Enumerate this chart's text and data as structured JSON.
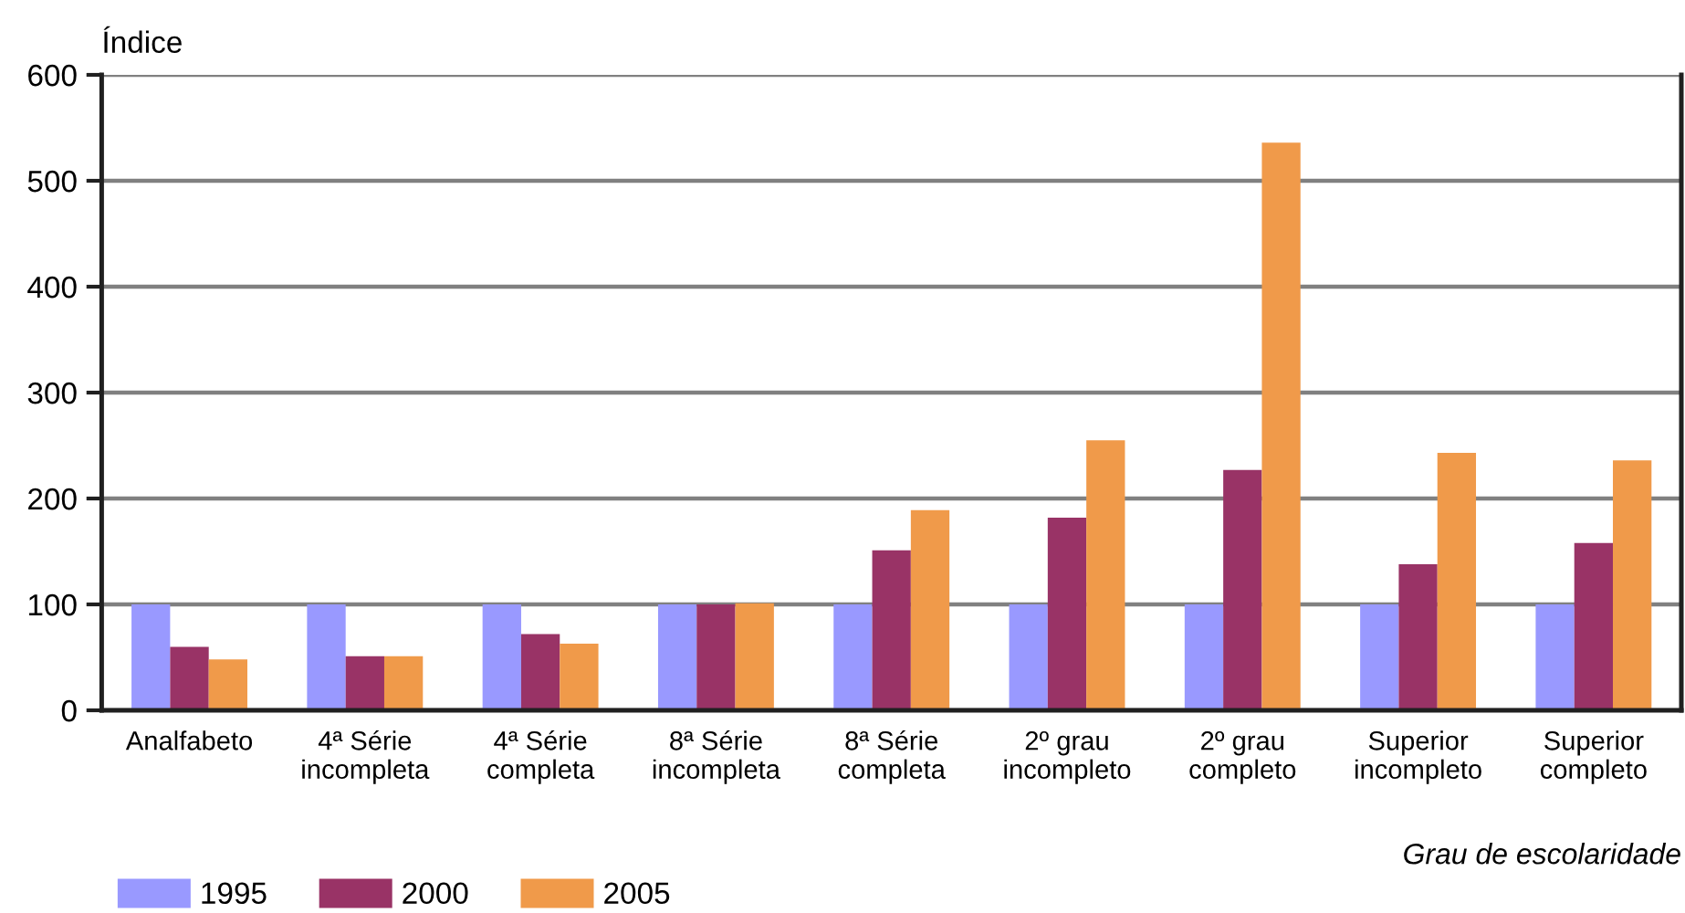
{
  "chart_data": {
    "type": "bar",
    "ylabel": "Índice",
    "xlabel": "Grau de escolaridade",
    "categories": [
      "Analfabeto",
      "4ª Série\nincompleta",
      "4ª Série\ncompleta",
      "8ª Série\nincompleta",
      "8ª Série\ncompleta",
      "2º grau\nincompleto",
      "2º grau\ncompleto",
      "Superior\nincompleto",
      "Superior\ncompleto"
    ],
    "series": [
      {
        "name": "1995",
        "color": "#9999ff",
        "values": [
          100,
          100,
          100,
          100,
          100,
          100,
          100,
          100,
          100
        ]
      },
      {
        "name": "2000",
        "color": "#993366",
        "values": [
          60,
          51,
          72,
          100,
          151,
          182,
          227,
          138,
          158
        ]
      },
      {
        "name": "2005",
        "color": "#f09a4a",
        "values": [
          48,
          51,
          63,
          101,
          189,
          255,
          536,
          243,
          236
        ]
      }
    ],
    "ylim": [
      0,
      600
    ],
    "yticks": [
      0,
      100,
      200,
      300,
      400,
      500,
      600
    ],
    "grid": "y",
    "legend": "bottom left"
  }
}
